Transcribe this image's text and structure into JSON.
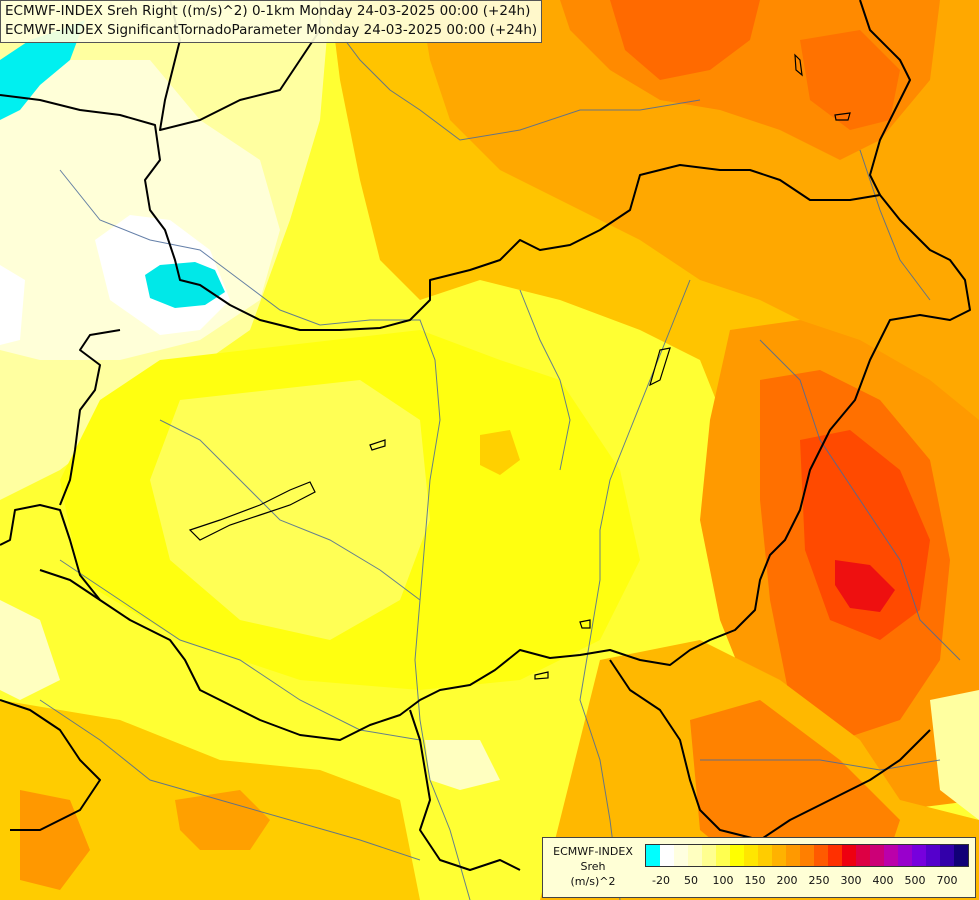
{
  "title": {
    "line1": "ECMWF-INDEX Sreh Right ((m/s)^2) 0-1km Monday 24-03-2025 00:00 (+24h)",
    "line2": "ECMWF-INDEX SignificantTornadoParameter Monday 24-03-2025 00:00 (+24h)"
  },
  "legend": {
    "title": "ECMWF-INDEX",
    "variable": "Sreh",
    "unit": "(m/s)^2",
    "colors": [
      "#00ffff",
      "#ffffff",
      "#ffffe0",
      "#ffffc0",
      "#ffff90",
      "#ffff50",
      "#ffff00",
      "#ffe600",
      "#ffcc00",
      "#ffb200",
      "#ff9900",
      "#ff7f00",
      "#ff5a00",
      "#ff3000",
      "#ee0010",
      "#dd0044",
      "#cc0077",
      "#bb00aa",
      "#9900cc",
      "#7700dd",
      "#5500cc",
      "#3300aa",
      "#110077"
    ],
    "tick_labels": [
      "-20",
      "50",
      "100",
      "150",
      "200",
      "250",
      "300",
      "400",
      "500",
      "700"
    ]
  }
}
